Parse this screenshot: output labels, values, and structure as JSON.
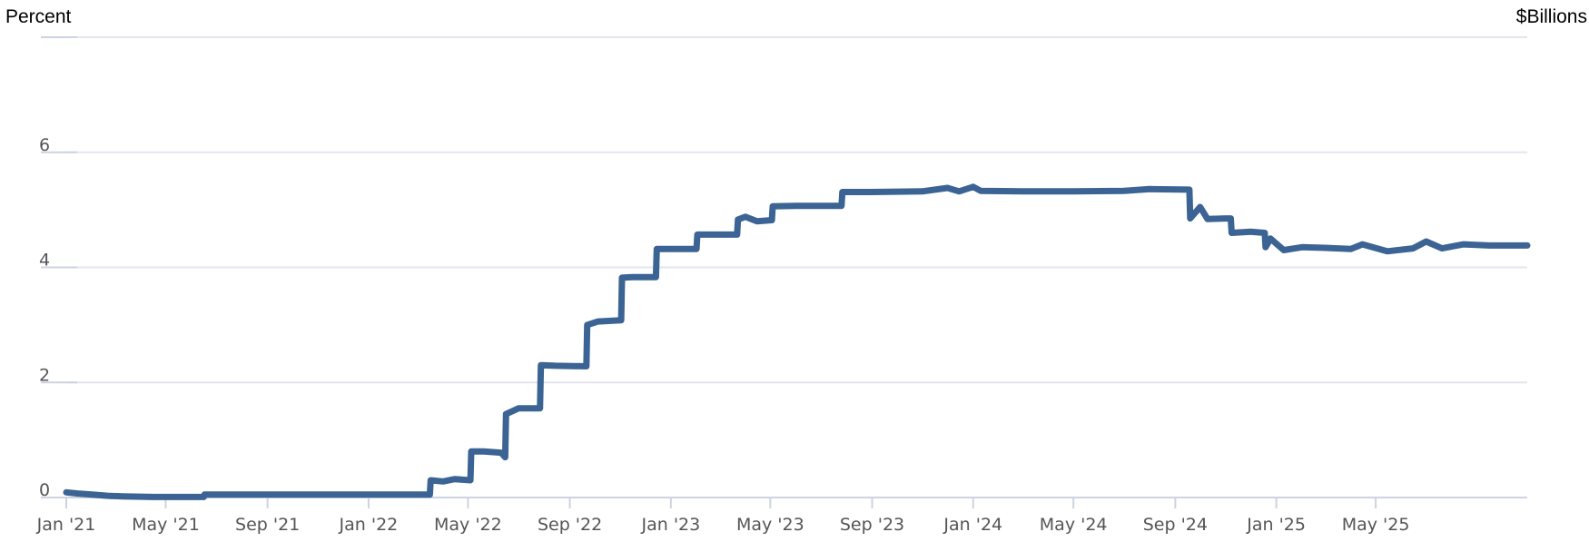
{
  "chart_data": {
    "type": "line",
    "title": "",
    "xlabel": "",
    "ylabel": "Percent",
    "y2label": "$Billions",
    "ylim": [
      0,
      8
    ],
    "yticks": [
      0,
      2,
      4,
      6
    ],
    "ytick_labels": [
      "0",
      "2",
      "4",
      "6"
    ],
    "xlim": [
      "2021-01-01",
      "2025-10-31"
    ],
    "xticks": [
      "2021-01-01",
      "2021-05-01",
      "2021-09-01",
      "2022-01-01",
      "2022-05-01",
      "2022-09-01",
      "2023-01-01",
      "2023-05-01",
      "2023-09-01",
      "2024-01-01",
      "2024-05-01",
      "2024-09-01",
      "2025-01-01",
      "2025-05-01"
    ],
    "xtick_labels": [
      "Jan '21",
      "May '21",
      "Sep '21",
      "Jan '22",
      "May '22",
      "Sep '22",
      "Jan '23",
      "May '23",
      "Sep '23",
      "Jan '24",
      "May '24",
      "Sep '24",
      "Jan '25",
      "May '25"
    ],
    "grid": true,
    "series": [
      {
        "name": "",
        "color": "#3b6494",
        "points": [
          [
            "2021-01-01",
            0.09
          ],
          [
            "2021-01-15",
            0.07
          ],
          [
            "2021-02-01",
            0.05
          ],
          [
            "2021-02-20",
            0.03
          ],
          [
            "2021-03-10",
            0.02
          ],
          [
            "2021-04-15",
            0.01
          ],
          [
            "2021-05-15",
            0.01
          ],
          [
            "2021-06-16",
            0.01
          ],
          [
            "2021-06-17",
            0.05
          ],
          [
            "2021-08-01",
            0.05
          ],
          [
            "2021-10-01",
            0.05
          ],
          [
            "2021-12-01",
            0.05
          ],
          [
            "2022-02-01",
            0.05
          ],
          [
            "2022-03-16",
            0.05
          ],
          [
            "2022-03-17",
            0.3
          ],
          [
            "2022-04-01",
            0.28
          ],
          [
            "2022-04-15",
            0.32
          ],
          [
            "2022-05-04",
            0.3
          ],
          [
            "2022-05-05",
            0.8
          ],
          [
            "2022-05-20",
            0.8
          ],
          [
            "2022-06-10",
            0.78
          ],
          [
            "2022-06-15",
            0.7
          ],
          [
            "2022-06-16",
            1.45
          ],
          [
            "2022-07-01",
            1.55
          ],
          [
            "2022-07-27",
            1.55
          ],
          [
            "2022-07-28",
            2.3
          ],
          [
            "2022-08-15",
            2.29
          ],
          [
            "2022-09-21",
            2.28
          ],
          [
            "2022-09-22",
            3.0
          ],
          [
            "2022-10-05",
            3.06
          ],
          [
            "2022-11-02",
            3.08
          ],
          [
            "2022-11-03",
            3.82
          ],
          [
            "2022-11-15",
            3.83
          ],
          [
            "2022-12-14",
            3.83
          ],
          [
            "2022-12-15",
            4.32
          ],
          [
            "2023-01-15",
            4.32
          ],
          [
            "2023-02-01",
            4.32
          ],
          [
            "2023-02-02",
            4.57
          ],
          [
            "2023-03-01",
            4.57
          ],
          [
            "2023-03-22",
            4.57
          ],
          [
            "2023-03-23",
            4.83
          ],
          [
            "2023-04-01",
            4.88
          ],
          [
            "2023-04-15",
            4.8
          ],
          [
            "2023-05-03",
            4.82
          ],
          [
            "2023-05-04",
            5.06
          ],
          [
            "2023-06-01",
            5.07
          ],
          [
            "2023-06-20",
            5.07
          ],
          [
            "2023-07-26",
            5.07
          ],
          [
            "2023-07-27",
            5.31
          ],
          [
            "2023-09-01",
            5.31
          ],
          [
            "2023-11-01",
            5.32
          ],
          [
            "2023-12-01",
            5.38
          ],
          [
            "2023-12-15",
            5.32
          ],
          [
            "2024-01-01",
            5.4
          ],
          [
            "2024-01-10",
            5.33
          ],
          [
            "2024-03-01",
            5.32
          ],
          [
            "2024-05-01",
            5.32
          ],
          [
            "2024-07-01",
            5.33
          ],
          [
            "2024-08-01",
            5.36
          ],
          [
            "2024-09-18",
            5.35
          ],
          [
            "2024-09-19",
            4.85
          ],
          [
            "2024-10-01",
            5.05
          ],
          [
            "2024-10-10",
            4.84
          ],
          [
            "2024-11-01",
            4.85
          ],
          [
            "2024-11-07",
            4.85
          ],
          [
            "2024-11-08",
            4.6
          ],
          [
            "2024-12-01",
            4.62
          ],
          [
            "2024-12-18",
            4.6
          ],
          [
            "2024-12-19",
            4.35
          ],
          [
            "2024-12-25",
            4.5
          ],
          [
            "2025-01-10",
            4.3
          ],
          [
            "2025-02-01",
            4.35
          ],
          [
            "2025-03-01",
            4.34
          ],
          [
            "2025-04-01",
            4.32
          ],
          [
            "2025-04-15",
            4.4
          ],
          [
            "2025-05-15",
            4.28
          ],
          [
            "2025-06-15",
            4.33
          ],
          [
            "2025-07-01",
            4.45
          ],
          [
            "2025-07-20",
            4.33
          ],
          [
            "2025-08-15",
            4.4
          ],
          [
            "2025-09-15",
            4.38
          ],
          [
            "2025-10-31",
            4.38
          ]
        ]
      }
    ]
  }
}
